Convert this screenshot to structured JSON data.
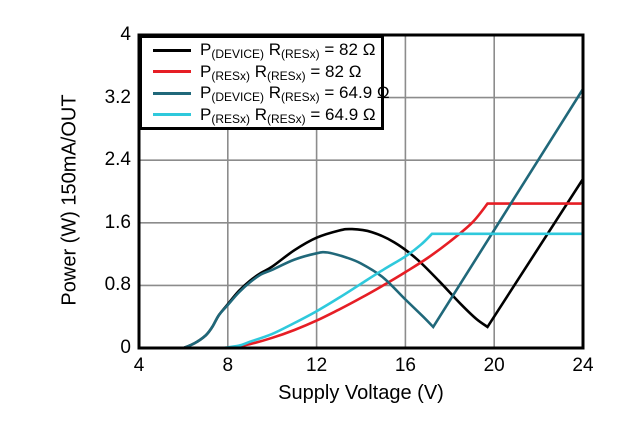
{
  "chart_data": {
    "type": "line",
    "title": "",
    "xlabel": "Supply Voltage (V)",
    "ylabel": "Power (W) 150mA/OUT",
    "xlim": [
      4,
      24
    ],
    "ylim": [
      0,
      4
    ],
    "xticks": [
      4,
      8,
      12,
      16,
      20,
      24
    ],
    "xtick_labels": [
      "4",
      "8",
      "12",
      "16",
      "20",
      "24"
    ],
    "yticks": [
      0,
      0.8,
      1.6,
      2.4,
      3.2,
      4
    ],
    "ytick_labels": [
      "0",
      "0.8",
      "1.6",
      "2.4",
      "3.2",
      "4"
    ],
    "grid": true,
    "grid_color": "#8c8c8c",
    "axis_color": "#000000",
    "legend_position": "top-left",
    "series": [
      {
        "name": "P(DEVICE) R(RESx) = 82 Ω",
        "color": "#000000",
        "legend": [
          {
            "t": "P"
          },
          {
            "s": "(DEVICE)"
          },
          {
            "t": " R"
          },
          {
            "s": "(RESx)"
          },
          {
            "t": " = 82 Ω"
          }
        ],
        "segments": [
          {
            "type": "smooth",
            "points": [
              [
                6.0,
                0
              ],
              [
                6.5,
                0.06
              ],
              [
                7.0,
                0.16
              ],
              [
                7.3,
                0.27
              ],
              [
                7.6,
                0.42
              ],
              [
                8.0,
                0.56
              ],
              [
                8.5,
                0.73
              ],
              [
                9.0,
                0.86
              ],
              [
                9.5,
                0.96
              ],
              [
                10.0,
                1.04
              ],
              [
                11,
                1.25
              ],
              [
                12,
                1.41
              ],
              [
                13,
                1.5
              ],
              [
                13.6,
                1.52
              ],
              [
                14.5,
                1.48
              ],
              [
                15.5,
                1.35
              ],
              [
                16.5,
                1.14
              ],
              [
                17.5,
                0.86
              ],
              [
                18.5,
                0.56
              ],
              [
                19.2,
                0.37
              ],
              [
                19.7,
                0.27
              ]
            ]
          },
          {
            "type": "line",
            "points": [
              [
                19.7,
                0.27
              ],
              [
                24,
                2.16
              ]
            ]
          }
        ]
      },
      {
        "name": "P(RESx) R(RESx) = 82 Ω",
        "color": "#e61e25",
        "legend": [
          {
            "t": "P"
          },
          {
            "s": "(RESx)"
          },
          {
            "t": " R"
          },
          {
            "s": "(RESx)"
          },
          {
            "t": " = 82 Ω"
          }
        ],
        "segments": [
          {
            "type": "smooth",
            "points": [
              [
                8.1,
                0
              ],
              [
                9,
                0.05
              ],
              [
                10,
                0.13
              ],
              [
                11,
                0.23
              ],
              [
                12,
                0.35
              ],
              [
                13,
                0.49
              ],
              [
                14,
                0.64
              ],
              [
                15,
                0.8
              ],
              [
                16,
                0.97
              ],
              [
                17,
                1.15
              ],
              [
                18,
                1.36
              ],
              [
                19,
                1.6
              ],
              [
                19.7,
                1.845
              ]
            ]
          },
          {
            "type": "line",
            "points": [
              [
                19.7,
                1.845
              ],
              [
                24,
                1.845
              ]
            ]
          }
        ]
      },
      {
        "name": "P(DEVICE) R(RESx) = 64.9 Ω",
        "color": "#20687a",
        "legend": [
          {
            "t": "P"
          },
          {
            "s": "(DEVICE)"
          },
          {
            "t": " R"
          },
          {
            "s": "(RESx)"
          },
          {
            "t": " = 64.9 Ω"
          }
        ],
        "segments": [
          {
            "type": "smooth",
            "points": [
              [
                6.0,
                0
              ],
              [
                6.5,
                0.06
              ],
              [
                7.0,
                0.16
              ],
              [
                7.3,
                0.27
              ],
              [
                7.6,
                0.42
              ],
              [
                8.0,
                0.55
              ],
              [
                8.5,
                0.71
              ],
              [
                9.0,
                0.84
              ],
              [
                9.5,
                0.94
              ],
              [
                10.0,
                1.0
              ],
              [
                11,
                1.13
              ],
              [
                12,
                1.21
              ],
              [
                12.5,
                1.22
              ],
              [
                13.3,
                1.16
              ],
              [
                14,
                1.08
              ],
              [
                15,
                0.9
              ],
              [
                16,
                0.62
              ],
              [
                16.8,
                0.4
              ],
              [
                17.25,
                0.27
              ]
            ]
          },
          {
            "type": "line",
            "points": [
              [
                17.25,
                0.27
              ],
              [
                24,
                3.31
              ]
            ]
          }
        ]
      },
      {
        "name": "P(RESx) R(RESx) = 64.9 Ω",
        "color": "#2fc9dc",
        "legend": [
          {
            "t": "P"
          },
          {
            "s": "(RESx)"
          },
          {
            "t": " R"
          },
          {
            "s": "(RESx)"
          },
          {
            "t": " = 64.9 Ω"
          }
        ],
        "segments": [
          {
            "type": "smooth",
            "points": [
              [
                7.8,
                0
              ],
              [
                8.5,
                0.03
              ],
              [
                9,
                0.08
              ],
              [
                10,
                0.18
              ],
              [
                11,
                0.32
              ],
              [
                12,
                0.47
              ],
              [
                13,
                0.64
              ],
              [
                14,
                0.82
              ],
              [
                15,
                1.0
              ],
              [
                16,
                1.17
              ],
              [
                16.7,
                1.32
              ],
              [
                17.2,
                1.46
              ]
            ]
          },
          {
            "type": "line",
            "points": [
              [
                17.2,
                1.46
              ],
              [
                24,
                1.46
              ]
            ]
          }
        ]
      }
    ]
  }
}
